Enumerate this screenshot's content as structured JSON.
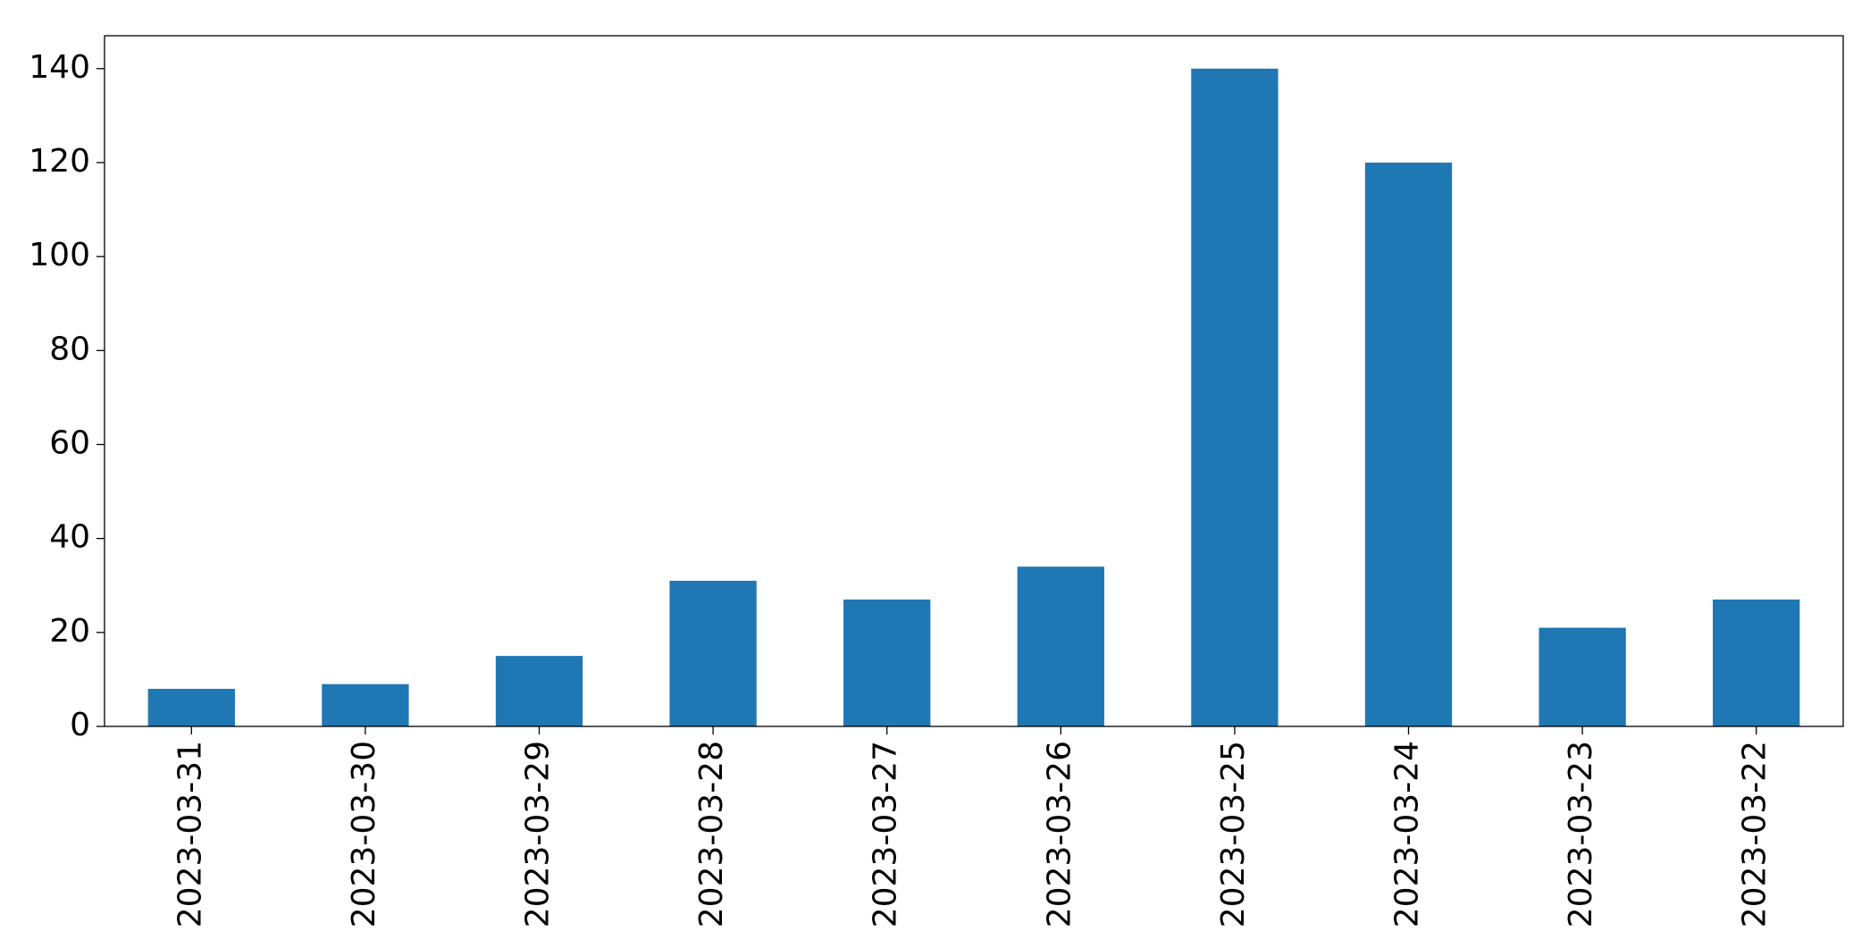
{
  "chart_data": {
    "type": "bar",
    "categories": [
      "2023-03-31",
      "2023-03-30",
      "2023-03-29",
      "2023-03-28",
      "2023-03-27",
      "2023-03-26",
      "2023-03-25",
      "2023-03-24",
      "2023-03-23",
      "2023-03-22"
    ],
    "values": [
      8,
      9,
      15,
      31,
      27,
      34,
      140,
      120,
      21,
      27
    ],
    "color": "#1f77b4",
    "ylim": [
      0,
      147
    ],
    "yticks": [
      0,
      20,
      40,
      60,
      80,
      100,
      120,
      140
    ],
    "grid": false
  }
}
